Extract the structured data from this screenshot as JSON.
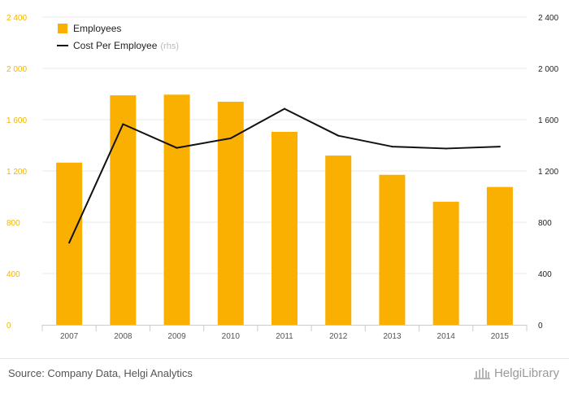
{
  "chart_data": {
    "type": "bar",
    "categories": [
      "2007",
      "2008",
      "2009",
      "2010",
      "2011",
      "2012",
      "2013",
      "2014",
      "2015"
    ],
    "series": [
      {
        "name": "Employees",
        "type": "bar",
        "axis": "left",
        "values": [
          1265,
          1790,
          1795,
          1740,
          1505,
          1320,
          1170,
          960,
          1075
        ]
      },
      {
        "name": "Cost Per Employee",
        "type": "line",
        "axis": "right",
        "values": [
          640,
          1565,
          1380,
          1455,
          1685,
          1475,
          1390,
          1375,
          1390
        ]
      }
    ],
    "ylim_left": [
      0,
      2400
    ],
    "ylim_right": [
      0,
      2400
    ],
    "yticks_left": [
      "0",
      "400",
      "800",
      "1 200",
      "1 600",
      "2 000",
      "2 400"
    ],
    "yticks_right": [
      "0",
      "400",
      "800",
      "1 200",
      "1 600",
      "2 000",
      "2 400"
    ],
    "legend": {
      "position": "top-left",
      "items": [
        {
          "label": "Employees",
          "suffix": ""
        },
        {
          "label": "Cost Per Employee",
          "suffix": "(rhs)"
        }
      ]
    },
    "grid": true,
    "colors": {
      "bars": "#f9b000",
      "line": "#111111",
      "left_axis_text": "#f4b400",
      "grid": "#e8e8e8"
    }
  },
  "footer": {
    "source": "Source: Company Data, Helgi Analytics",
    "brand": "HelgiLibrary"
  }
}
